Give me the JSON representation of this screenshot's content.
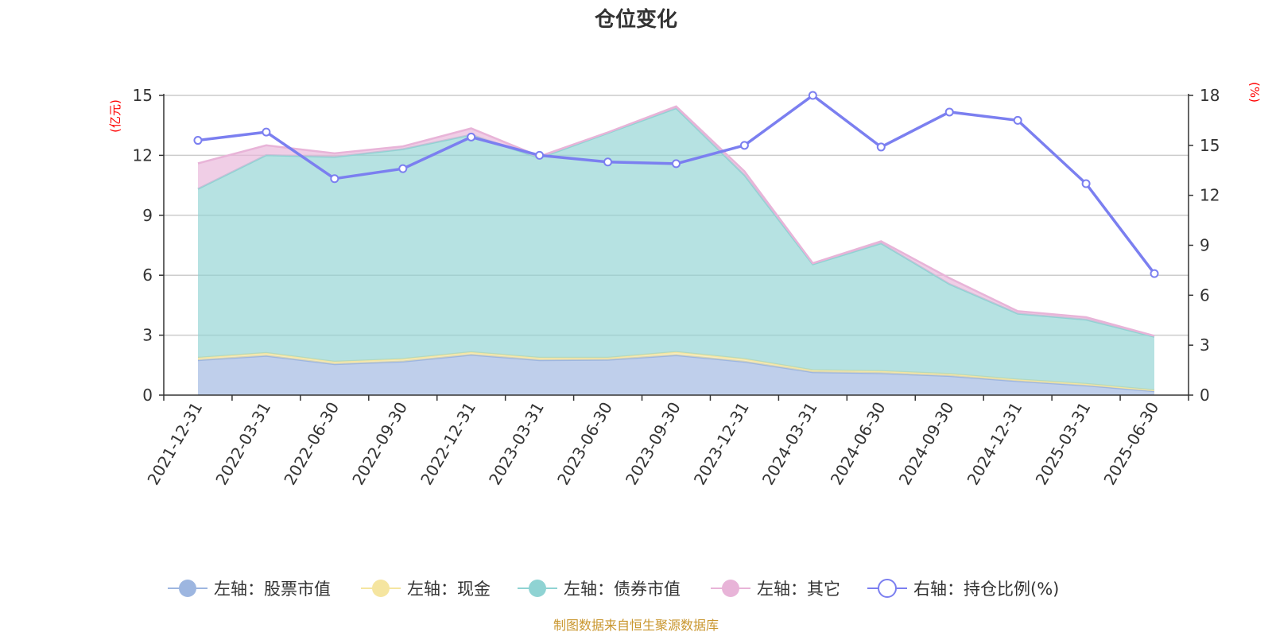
{
  "chart_data": {
    "type": "area",
    "title": "仓位变化",
    "source_note": "制图数据来自恒生聚源数据库",
    "categories": [
      "2021-12-31",
      "2022-03-31",
      "2022-06-30",
      "2022-09-30",
      "2022-12-31",
      "2023-03-31",
      "2023-06-30",
      "2023-09-30",
      "2023-12-31",
      "2024-03-31",
      "2024-06-30",
      "2024-09-30",
      "2024-12-31",
      "2025-03-31",
      "2025-06-30"
    ],
    "y_left": {
      "unit": "(亿元)",
      "ticks": [
        "0",
        "3",
        "6",
        "9",
        "12",
        "15"
      ],
      "range": [
        0,
        15
      ]
    },
    "y_right": {
      "unit": "(%)",
      "ticks": [
        "0",
        "3",
        "6",
        "9",
        "12",
        "15",
        "18"
      ],
      "range": [
        0,
        18
      ]
    },
    "grid": true,
    "legend_position": "bottom",
    "stacked_series": [
      {
        "name": "左轴：股票市值",
        "color": "#9db6e0",
        "values": [
          1.75,
          1.97,
          1.55,
          1.68,
          2.02,
          1.75,
          1.77,
          2.0,
          1.67,
          1.15,
          1.1,
          0.96,
          0.7,
          0.48,
          0.2
        ]
      },
      {
        "name": "左轴：现金",
        "color": "#f5e5a0",
        "values": [
          0.12,
          0.14,
          0.12,
          0.13,
          0.13,
          0.12,
          0.1,
          0.16,
          0.14,
          0.1,
          0.1,
          0.1,
          0.08,
          0.08,
          0.05
        ]
      },
      {
        "name": "左轴：债券市值",
        "color": "#8fd3d3",
        "values": [
          8.45,
          9.9,
          10.25,
          10.5,
          10.88,
          10.0,
          11.25,
          12.2,
          9.2,
          5.3,
          6.4,
          4.5,
          3.3,
          3.22,
          2.67
        ]
      },
      {
        "name": "左轴：其它",
        "color": "#e8b4d8",
        "values": [
          1.28,
          0.49,
          0.18,
          0.14,
          0.32,
          0.08,
          0.03,
          0.09,
          0.19,
          0.05,
          0.1,
          0.3,
          0.12,
          0.12,
          0.05
        ]
      }
    ],
    "line_series": {
      "name": "右轴：持仓比例(%)",
      "color": "#7b7ff0",
      "axis": "right",
      "values": [
        15.3,
        15.8,
        13.0,
        13.6,
        15.5,
        14.4,
        14.0,
        13.9,
        15.0,
        18.0,
        14.9,
        17.0,
        16.5,
        12.7,
        7.3
      ]
    }
  }
}
